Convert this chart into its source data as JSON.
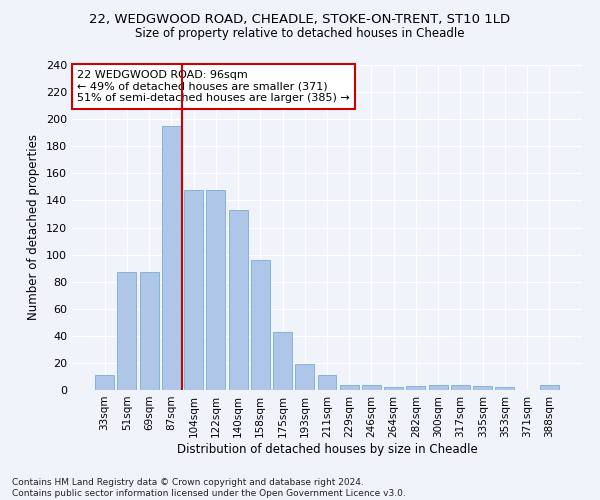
{
  "title_line1": "22, WEDGWOOD ROAD, CHEADLE, STOKE-ON-TRENT, ST10 1LD",
  "title_line2": "Size of property relative to detached houses in Cheadle",
  "xlabel": "Distribution of detached houses by size in Cheadle",
  "ylabel": "Number of detached properties",
  "categories": [
    "33sqm",
    "51sqm",
    "69sqm",
    "87sqm",
    "104sqm",
    "122sqm",
    "140sqm",
    "158sqm",
    "175sqm",
    "193sqm",
    "211sqm",
    "229sqm",
    "246sqm",
    "264sqm",
    "282sqm",
    "300sqm",
    "317sqm",
    "335sqm",
    "353sqm",
    "371sqm",
    "388sqm"
  ],
  "values": [
    11,
    87,
    87,
    195,
    148,
    148,
    133,
    96,
    43,
    19,
    11,
    4,
    4,
    2,
    3,
    4,
    4,
    3,
    2,
    0,
    4
  ],
  "bar_color": "#aec6e8",
  "bar_edge_color": "#7aadd4",
  "vline_color": "#cc0000",
  "annotation_text": "22 WEDGWOOD ROAD: 96sqm\n← 49% of detached houses are smaller (371)\n51% of semi-detached houses are larger (385) →",
  "annotation_box_color": "#ffffff",
  "annotation_box_edge": "#cc0000",
  "ylim": [
    0,
    240
  ],
  "yticks": [
    0,
    20,
    40,
    60,
    80,
    100,
    120,
    140,
    160,
    180,
    200,
    220,
    240
  ],
  "footnote": "Contains HM Land Registry data © Crown copyright and database right 2024.\nContains public sector information licensed under the Open Government Licence v3.0.",
  "bg_color": "#f0f4fa",
  "grid_color": "#ffffff"
}
